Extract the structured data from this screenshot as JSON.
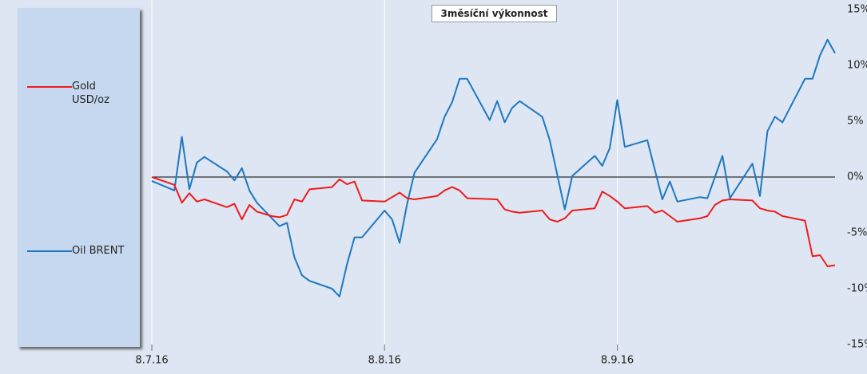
{
  "chart_data": {
    "type": "line",
    "title": "3měsíční výkonnost",
    "xlim": [
      0,
      91
    ],
    "xticks": [
      {
        "value": 0,
        "label": "8.7.16"
      },
      {
        "value": 31,
        "label": "8.8.16"
      },
      {
        "value": 62,
        "label": "8.9.16"
      }
    ],
    "ylim": [
      -15,
      15
    ],
    "yticks": [
      {
        "value": 15,
        "label": "15%"
      },
      {
        "value": 10,
        "label": "10%"
      },
      {
        "value": 5,
        "label": "5%"
      },
      {
        "value": 0,
        "label": "0%"
      },
      {
        "value": -5,
        "label": "-5%"
      },
      {
        "value": -10,
        "label": "-10%"
      },
      {
        "value": -15,
        "label": "-15%"
      }
    ],
    "grid": "x",
    "legend": "left",
    "series": [
      {
        "name": "Gold USD/oz",
        "color": "#ee1c1c",
        "x": [
          0,
          3,
          4,
          5,
          6,
          7,
          10,
          11,
          12,
          13,
          14,
          16,
          17,
          18,
          19,
          20,
          21,
          24,
          25,
          26,
          27,
          28,
          31,
          33,
          34,
          35,
          38,
          39,
          40,
          41,
          42,
          46,
          47,
          48,
          49,
          52,
          53,
          54,
          55,
          56,
          59,
          60,
          61,
          62,
          63,
          66,
          67,
          68,
          70,
          73,
          74,
          75,
          76,
          77,
          80,
          81,
          82,
          83,
          84,
          87,
          88,
          89,
          90,
          91
        ],
        "values": [
          0,
          -0.7,
          -2.3,
          -1.45,
          -2.2,
          -2.0,
          -2.7,
          -2.4,
          -3.8,
          -2.5,
          -3.1,
          -3.5,
          -3.6,
          -3.4,
          -2.0,
          -2.2,
          -1.1,
          -0.9,
          -0.2,
          -0.65,
          -0.4,
          -2.1,
          -2.2,
          -1.4,
          -1.9,
          -2.0,
          -1.7,
          -1.2,
          -0.9,
          -1.2,
          -1.9,
          -2.0,
          -2.9,
          -3.1,
          -3.2,
          -3.0,
          -3.8,
          -4.0,
          -3.7,
          -3.0,
          -2.8,
          -1.3,
          -1.7,
          -2.2,
          -2.8,
          -2.6,
          -3.2,
          -3.0,
          -4.0,
          -3.7,
          -3.5,
          -2.5,
          -2.1,
          -2.0,
          -2.1,
          -2.8,
          -3.0,
          -3.1,
          -3.5,
          -3.9,
          -7.1,
          -7.0,
          -8.0,
          -7.9
        ]
      },
      {
        "name": "Oil BRENT",
        "color": "#1f78c1",
        "x": [
          0,
          3,
          4,
          5,
          6,
          7,
          10,
          11,
          12,
          13,
          14,
          17,
          18,
          19,
          20,
          21,
          24,
          25,
          26,
          27,
          28,
          31,
          32,
          33,
          34,
          35,
          38,
          39,
          40,
          41,
          42,
          45,
          46,
          47,
          48,
          49,
          52,
          53,
          55,
          56,
          59,
          60,
          61,
          62,
          63,
          66,
          68,
          69,
          70,
          73,
          74,
          76,
          77,
          80,
          81,
          82,
          83,
          84,
          87,
          88,
          89,
          90,
          91
        ],
        "values": [
          -0.35,
          -1.2,
          3.6,
          -1.1,
          1.3,
          1.8,
          0.5,
          -0.3,
          0.8,
          -1.2,
          -2.3,
          -4.4,
          -4.1,
          -7.2,
          -8.8,
          -9.3,
          -10.0,
          -10.7,
          -7.8,
          -5.4,
          -5.4,
          -3.0,
          -3.8,
          -5.9,
          -2.4,
          0.4,
          3.4,
          5.4,
          6.7,
          8.8,
          8.8,
          5.1,
          6.8,
          4.9,
          6.2,
          6.8,
          5.4,
          3.3,
          -2.9,
          0.1,
          1.9,
          1.0,
          2.6,
          6.9,
          2.7,
          3.3,
          -2.0,
          -0.4,
          -2.2,
          -1.8,
          -1.9,
          1.9,
          -1.9,
          1.2,
          -1.7,
          4.1,
          5.4,
          4.9,
          8.8,
          8.8,
          10.9,
          12.3,
          11.1
        ]
      }
    ]
  }
}
